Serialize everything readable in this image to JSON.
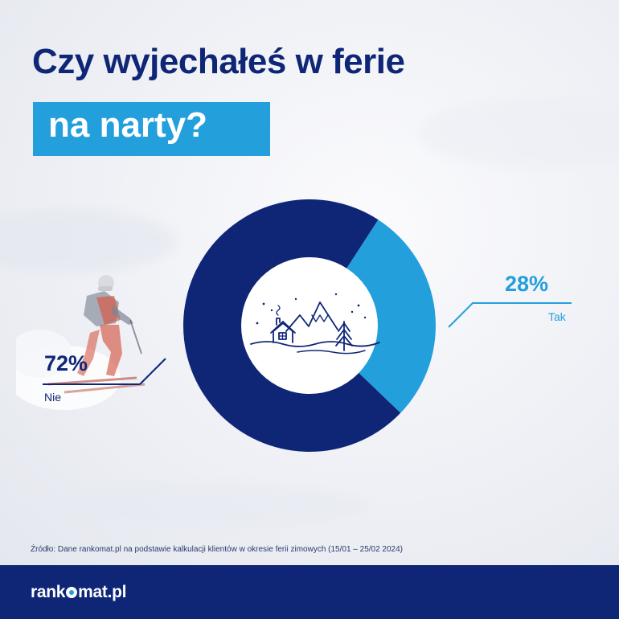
{
  "title": {
    "line1": "Czy wyjechałeś w ferie",
    "line2": "na narty?"
  },
  "chart_data": {
    "type": "pie",
    "style": "donut",
    "categories": [
      "Nie",
      "Tak"
    ],
    "values": [
      72,
      28
    ],
    "value_labels": [
      "72%",
      "28%"
    ],
    "colors": [
      "#0f2677",
      "#239fdc"
    ],
    "center_icon": "winter-mountains-cabin-icon"
  },
  "source": "Źródło: Dane rankomat.pl na podstawie kalkulacji klientów w okresie ferii zimowych (15/01 – 25/02 2024)",
  "footer": {
    "logo_left": "rank",
    "logo_right": "mat.pl",
    "logo_icon": "logo-star-icon"
  },
  "background": {
    "image": "skier-on-snow-slope"
  }
}
